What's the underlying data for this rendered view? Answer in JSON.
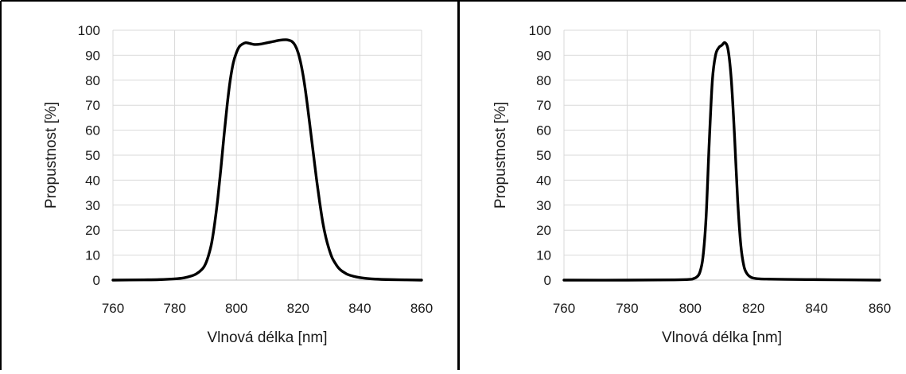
{
  "chart_data": [
    {
      "type": "line",
      "title": "",
      "xlabel": "Vlnová délka [nm]",
      "ylabel": "Propustnost [%]",
      "xlim": [
        760,
        860
      ],
      "ylim": [
        0,
        100
      ],
      "x_ticks": [
        "760",
        "780",
        "800",
        "820",
        "840",
        "860"
      ],
      "y_ticks": [
        "0",
        "10",
        "20",
        "30",
        "40",
        "50",
        "60",
        "70",
        "80",
        "90",
        "100"
      ],
      "grid": true,
      "legend": "none",
      "series": [
        {
          "color": "#000000",
          "x": [
            760,
            770,
            775,
            780,
            783,
            785,
            787,
            789,
            790,
            791,
            792,
            793,
            794,
            795,
            796,
            797,
            798,
            799,
            800,
            801,
            802,
            803,
            804,
            805,
            806,
            808,
            810,
            812,
            814,
            816,
            817,
            818,
            819,
            820,
            821,
            822,
            823,
            824,
            825,
            826,
            827,
            828,
            829,
            830,
            831,
            832,
            833,
            834,
            835,
            836,
            838,
            840,
            842,
            845,
            850,
            855,
            860
          ],
          "y": [
            0,
            0.1,
            0.2,
            0.5,
            0.9,
            1.5,
            2.5,
            4.5,
            6.5,
            10,
            15,
            23,
            33,
            45,
            58,
            70,
            80,
            87,
            91,
            93.5,
            94.5,
            95,
            94.8,
            94.5,
            94.3,
            94.5,
            95,
            95.5,
            96,
            96.2,
            96,
            95.5,
            94,
            91,
            86,
            79,
            70,
            60,
            50,
            40,
            31,
            23,
            17,
            12.5,
            9,
            6.8,
            5,
            3.8,
            3,
            2.3,
            1.5,
            1,
            0.7,
            0.4,
            0.2,
            0.1,
            0
          ]
        }
      ]
    },
    {
      "type": "line",
      "title": "",
      "xlabel": "Vlnová délka [nm]",
      "ylabel": "Propustnost [%]",
      "xlim": [
        760,
        860
      ],
      "ylim": [
        0,
        100
      ],
      "x_ticks": [
        "760",
        "780",
        "800",
        "820",
        "840",
        "860"
      ],
      "y_ticks": [
        "0",
        "10",
        "20",
        "30",
        "40",
        "50",
        "60",
        "70",
        "80",
        "90",
        "100"
      ],
      "grid": true,
      "legend": "none",
      "series": [
        {
          "color": "#000000",
          "x": [
            760,
            780,
            795,
            800,
            801,
            802,
            803,
            804,
            805,
            806,
            807,
            808,
            809,
            810,
            811,
            812,
            813,
            814,
            815,
            816,
            817,
            818,
            819,
            820,
            822,
            825,
            830,
            840,
            850,
            860
          ],
          "y": [
            0,
            0,
            0.1,
            0.3,
            0.6,
            1.2,
            3,
            9,
            25,
            55,
            80,
            90,
            93,
            94,
            95,
            92,
            80,
            58,
            32,
            14,
            5.5,
            2.5,
            1.3,
            0.8,
            0.5,
            0.4,
            0.3,
            0.2,
            0.1,
            0
          ]
        }
      ]
    }
  ]
}
